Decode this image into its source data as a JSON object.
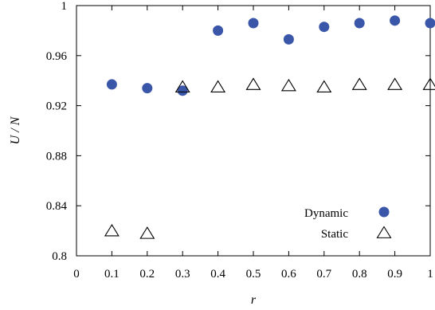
{
  "chart_data": {
    "type": "scatter",
    "xlabel": "r",
    "ylabel": "U / N",
    "xlim": [
      0,
      1
    ],
    "ylim": [
      0.8,
      1
    ],
    "x_ticks": [
      "0",
      "0.1",
      "0.2",
      "0.3",
      "0.4",
      "0.5",
      "0.6",
      "0.7",
      "0.8",
      "0.9",
      "1"
    ],
    "y_ticks": [
      "0.8",
      "0.84",
      "0.88",
      "0.92",
      "0.96",
      "1"
    ],
    "x_tick_values": [
      0,
      0.1,
      0.2,
      0.3,
      0.4,
      0.5,
      0.6,
      0.7,
      0.8,
      0.9,
      1
    ],
    "y_tick_values": [
      0.8,
      0.84,
      0.88,
      0.92,
      0.96,
      1
    ],
    "grid": false,
    "legend_position": "bottom-right",
    "series": [
      {
        "name": "Dynamic",
        "marker": "filled-circle",
        "color": "#3a56a8",
        "x": [
          0.1,
          0.2,
          0.3,
          0.4,
          0.5,
          0.6,
          0.7,
          0.8,
          0.9,
          1.0
        ],
        "y": [
          0.937,
          0.934,
          0.932,
          0.98,
          0.986,
          0.973,
          0.983,
          0.986,
          0.988,
          0.986
        ]
      },
      {
        "name": "Static",
        "marker": "open-triangle",
        "color": "#000000",
        "x": [
          0.1,
          0.2,
          0.3,
          0.4,
          0.5,
          0.6,
          0.7,
          0.8,
          0.9,
          1.0
        ],
        "y": [
          0.82,
          0.818,
          0.935,
          0.935,
          0.937,
          0.936,
          0.935,
          0.937,
          0.937,
          0.937
        ]
      }
    ]
  }
}
